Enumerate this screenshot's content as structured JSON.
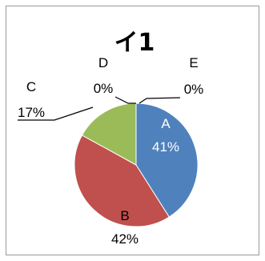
{
  "chart_data": {
    "type": "pie",
    "title": "イ1",
    "categories": [
      "A",
      "B",
      "C",
      "D",
      "E"
    ],
    "values": [
      41,
      42,
      17,
      0,
      0
    ],
    "percent_labels": [
      "41%",
      "42%",
      "17%",
      "0%",
      "0%"
    ],
    "colors": [
      "#4f81bd",
      "#c0504d",
      "#9bbb59",
      "#8064a2",
      "#4bacc6"
    ],
    "start_angle": "12 o'clock",
    "direction": "clockwise",
    "legend": "none"
  }
}
